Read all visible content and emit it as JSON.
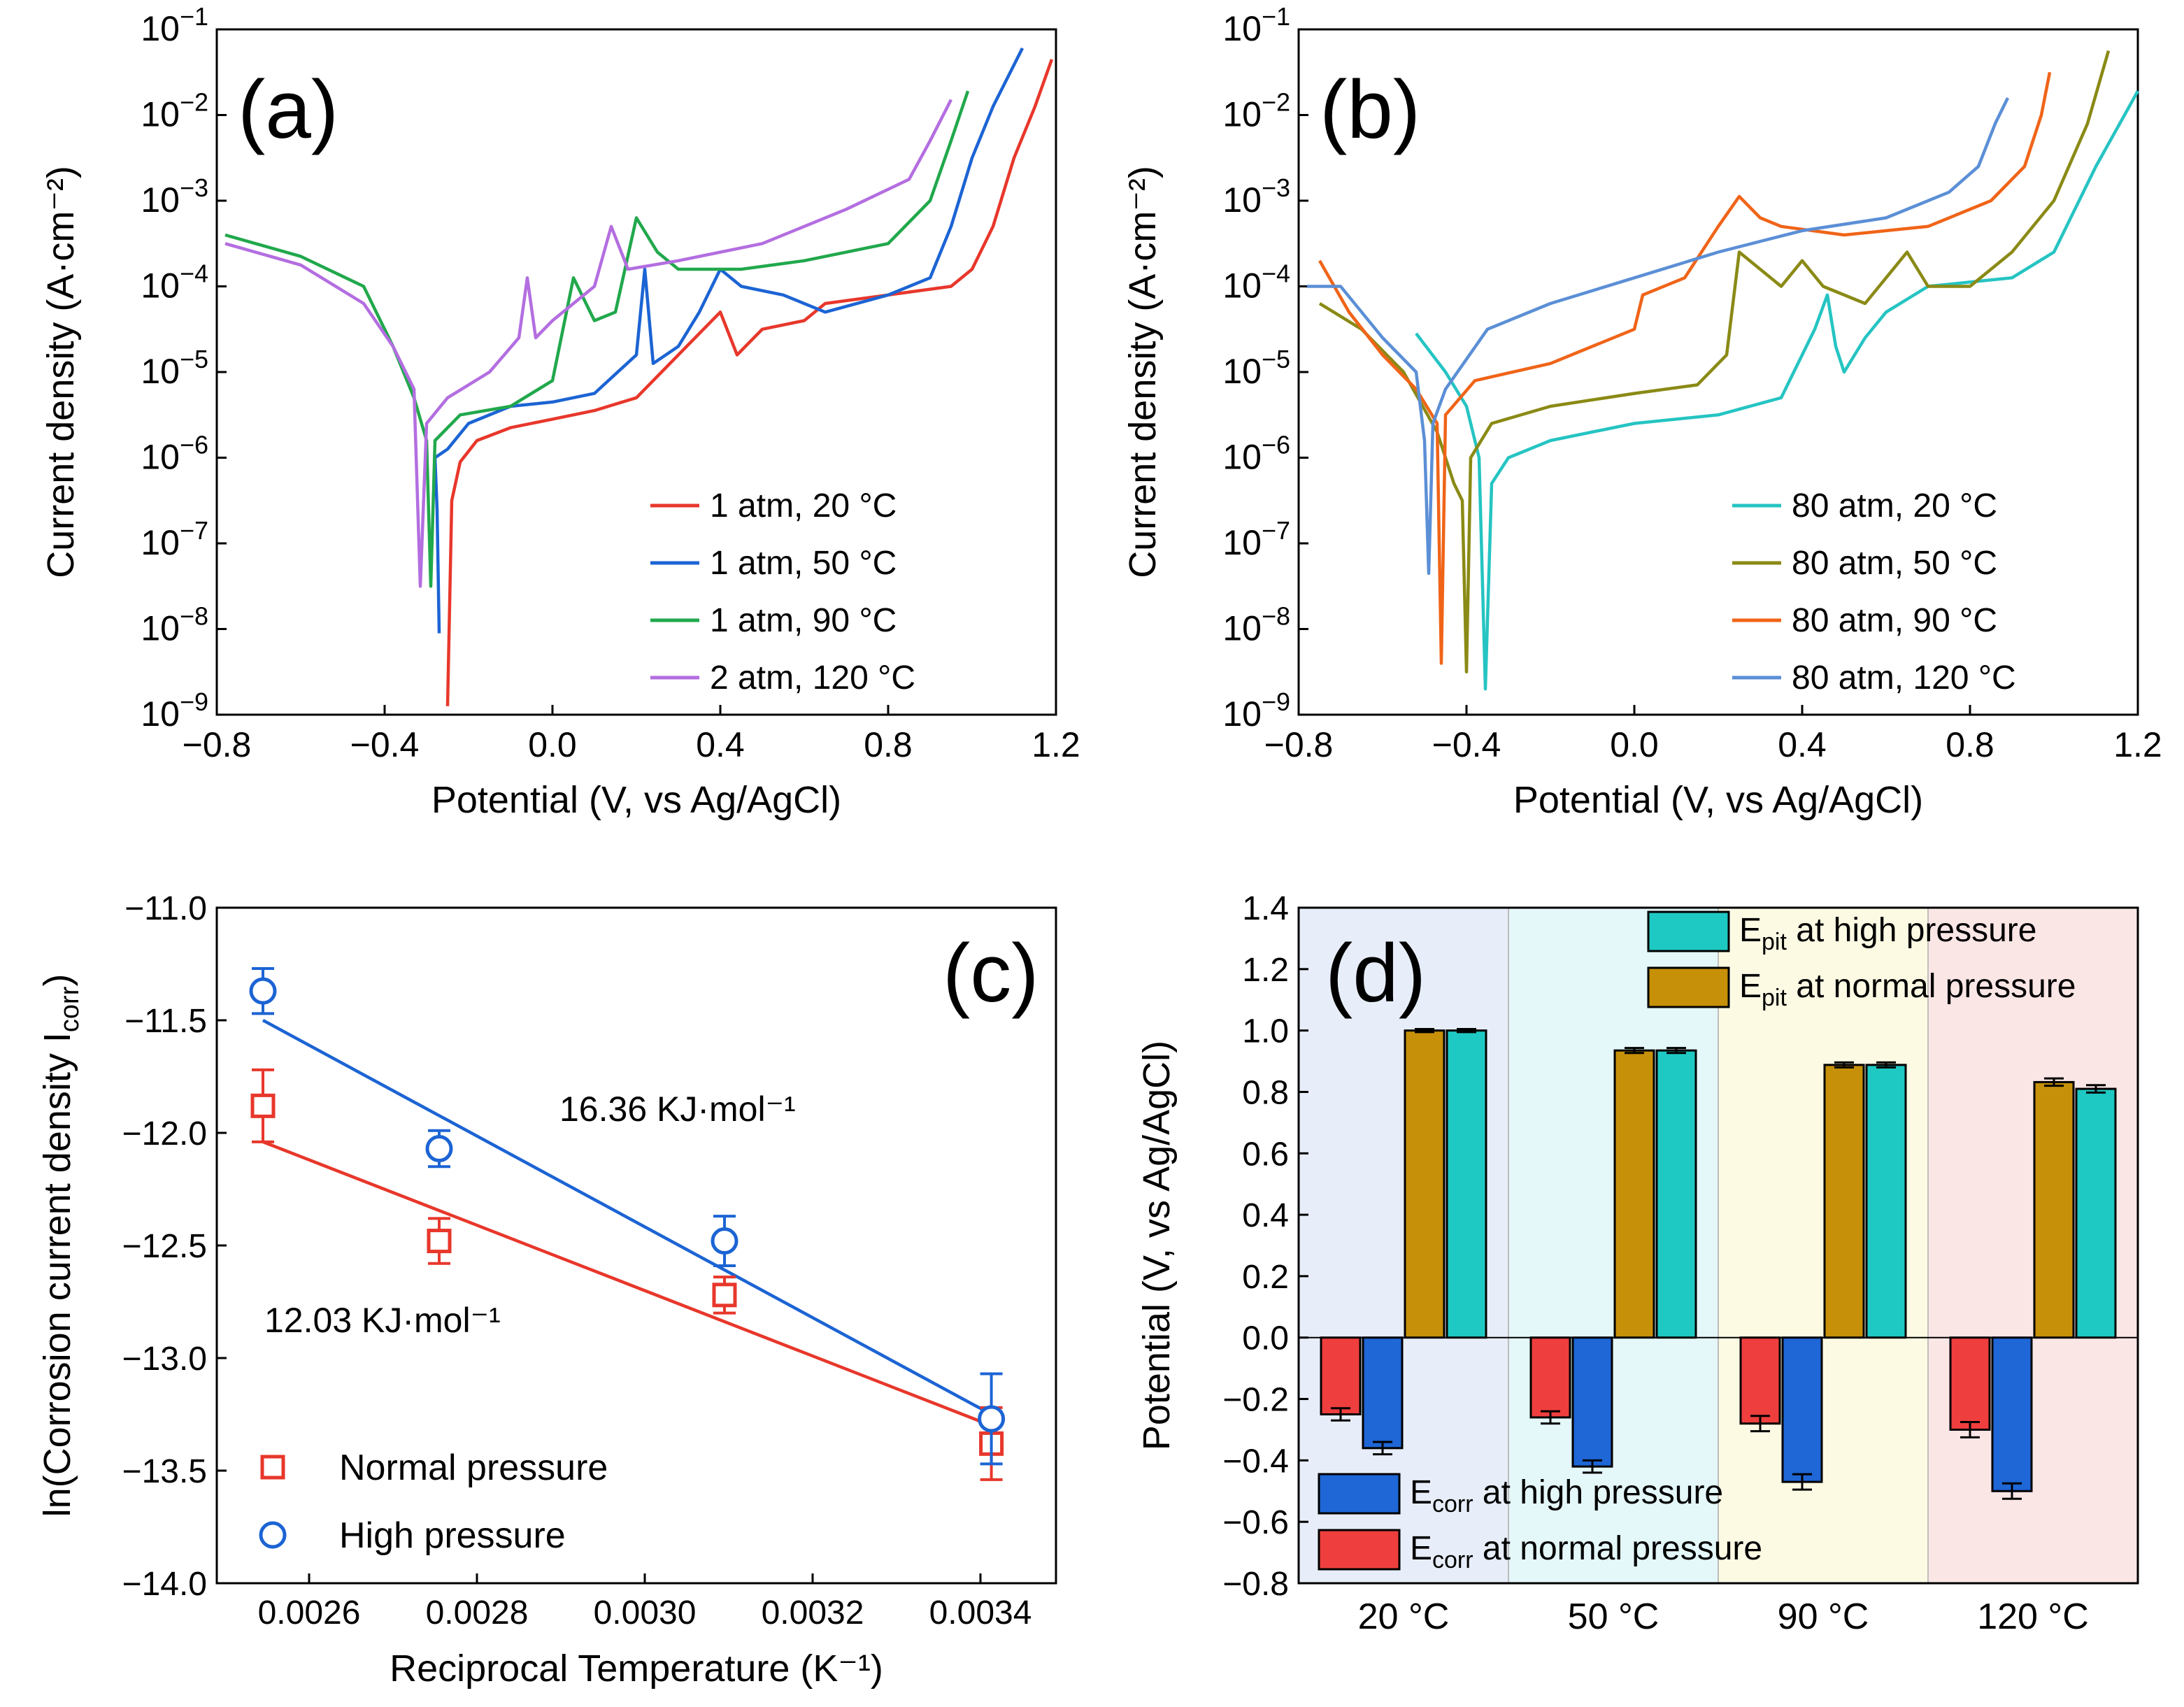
{
  "chart_data": [
    {
      "panel": "(a)",
      "type": "line",
      "xlabel": "Potential (V, vs Ag/AgCl)",
      "ylabel": "Current density (A·cm⁻²)",
      "xlim": [
        -0.8,
        1.2
      ],
      "ylim_log10": [
        -9,
        -1
      ],
      "xticks": [
        "−0.8",
        "−0.4",
        "0.0",
        "0.4",
        "0.8",
        "1.2"
      ],
      "legend_position": "bottom-right",
      "series": [
        {
          "name": "1 atm, 20 °C",
          "color": "#e8372b",
          "points": [
            [
              -0.25,
              -8.9
            ],
            [
              -0.24,
              -6.5
            ],
            [
              -0.22,
              -6.05
            ],
            [
              -0.18,
              -5.8
            ],
            [
              -0.1,
              -5.65
            ],
            [
              0.0,
              -5.55
            ],
            [
              0.1,
              -5.45
            ],
            [
              0.2,
              -5.3
            ],
            [
              0.3,
              -4.8
            ],
            [
              0.4,
              -4.3
            ],
            [
              0.44,
              -4.8
            ],
            [
              0.5,
              -4.5
            ],
            [
              0.6,
              -4.4
            ],
            [
              0.65,
              -4.2
            ],
            [
              0.8,
              -4.1
            ],
            [
              0.95,
              -4.0
            ],
            [
              1.0,
              -3.8
            ],
            [
              1.05,
              -3.3
            ],
            [
              1.1,
              -2.5
            ],
            [
              1.15,
              -1.9
            ],
            [
              1.19,
              -1.35
            ]
          ]
        },
        {
          "name": "1 atm, 50 °C",
          "color": "#1c64d4",
          "points": [
            [
              -0.27,
              -8.05
            ],
            [
              -0.275,
              -6.6
            ],
            [
              -0.28,
              -6.0
            ],
            [
              -0.25,
              -5.9
            ],
            [
              -0.2,
              -5.6
            ],
            [
              -0.1,
              -5.4
            ],
            [
              0.0,
              -5.35
            ],
            [
              0.1,
              -5.25
            ],
            [
              0.2,
              -4.8
            ],
            [
              0.22,
              -3.8
            ],
            [
              0.24,
              -4.9
            ],
            [
              0.3,
              -4.7
            ],
            [
              0.35,
              -4.3
            ],
            [
              0.4,
              -3.8
            ],
            [
              0.45,
              -4.0
            ],
            [
              0.55,
              -4.1
            ],
            [
              0.65,
              -4.3
            ],
            [
              0.8,
              -4.1
            ],
            [
              0.9,
              -3.9
            ],
            [
              0.95,
              -3.3
            ],
            [
              1.0,
              -2.5
            ],
            [
              1.05,
              -1.9
            ],
            [
              1.12,
              -1.22
            ]
          ]
        },
        {
          "name": "1 atm, 90 °C",
          "color": "#21a84c",
          "points": [
            [
              -0.78,
              -3.4
            ],
            [
              -0.6,
              -3.65
            ],
            [
              -0.45,
              -4.0
            ],
            [
              -0.38,
              -4.7
            ],
            [
              -0.33,
              -5.3
            ],
            [
              -0.3,
              -5.8
            ],
            [
              -0.29,
              -7.5
            ],
            [
              -0.28,
              -5.8
            ],
            [
              -0.22,
              -5.5
            ],
            [
              -0.1,
              -5.4
            ],
            [
              0.0,
              -5.1
            ],
            [
              0.05,
              -3.9
            ],
            [
              0.1,
              -4.4
            ],
            [
              0.15,
              -4.3
            ],
            [
              0.2,
              -3.2
            ],
            [
              0.25,
              -3.6
            ],
            [
              0.3,
              -3.8
            ],
            [
              0.45,
              -3.8
            ],
            [
              0.6,
              -3.7
            ],
            [
              0.8,
              -3.5
            ],
            [
              0.9,
              -3.0
            ],
            [
              0.95,
              -2.3
            ],
            [
              0.99,
              -1.72
            ]
          ]
        },
        {
          "name": "2 atm, 120 °C",
          "color": "#b36ee0",
          "points": [
            [
              -0.78,
              -3.5
            ],
            [
              -0.6,
              -3.75
            ],
            [
              -0.45,
              -4.2
            ],
            [
              -0.38,
              -4.7
            ],
            [
              -0.33,
              -5.2
            ],
            [
              -0.315,
              -7.5
            ],
            [
              -0.3,
              -5.6
            ],
            [
              -0.25,
              -5.3
            ],
            [
              -0.15,
              -5.0
            ],
            [
              -0.08,
              -4.6
            ],
            [
              -0.06,
              -3.9
            ],
            [
              -0.04,
              -4.6
            ],
            [
              0.0,
              -4.4
            ],
            [
              0.1,
              -4.0
            ],
            [
              0.14,
              -3.3
            ],
            [
              0.18,
              -3.8
            ],
            [
              0.3,
              -3.7
            ],
            [
              0.5,
              -3.5
            ],
            [
              0.7,
              -3.1
            ],
            [
              0.85,
              -2.75
            ],
            [
              0.9,
              -2.3
            ],
            [
              0.95,
              -1.82
            ]
          ]
        }
      ]
    },
    {
      "panel": "(b)",
      "type": "line",
      "xlabel": "Potential (V, vs Ag/AgCl)",
      "ylabel": "Current density (A·cm⁻²)",
      "xlim": [
        -0.8,
        1.2
      ],
      "ylim_log10": [
        -9,
        -1
      ],
      "xticks": [
        "−0.8",
        "−0.4",
        "0.0",
        "0.4",
        "0.8",
        "1.2"
      ],
      "legend_position": "bottom-right",
      "series": [
        {
          "name": "80 atm, 20 °C",
          "color": "#25c4c2",
          "points": [
            [
              -0.52,
              -4.55
            ],
            [
              -0.45,
              -5.0
            ],
            [
              -0.4,
              -5.4
            ],
            [
              -0.37,
              -6.0
            ],
            [
              -0.355,
              -8.7
            ],
            [
              -0.34,
              -6.3
            ],
            [
              -0.3,
              -6.0
            ],
            [
              -0.2,
              -5.8
            ],
            [
              0.0,
              -5.6
            ],
            [
              0.2,
              -5.5
            ],
            [
              0.35,
              -5.3
            ],
            [
              0.43,
              -4.5
            ],
            [
              0.46,
              -4.1
            ],
            [
              0.48,
              -4.7
            ],
            [
              0.5,
              -5.0
            ],
            [
              0.55,
              -4.6
            ],
            [
              0.6,
              -4.3
            ],
            [
              0.7,
              -4.0
            ],
            [
              0.8,
              -3.95
            ],
            [
              0.9,
              -3.9
            ],
            [
              1.0,
              -3.6
            ],
            [
              1.1,
              -2.6
            ],
            [
              1.2,
              -1.72
            ]
          ]
        },
        {
          "name": "80 atm, 50 °C",
          "color": "#8a8a16",
          "points": [
            [
              -0.75,
              -4.2
            ],
            [
              -0.65,
              -4.5
            ],
            [
              -0.55,
              -5.0
            ],
            [
              -0.47,
              -5.7
            ],
            [
              -0.43,
              -6.3
            ],
            [
              -0.41,
              -6.5
            ],
            [
              -0.4,
              -8.5
            ],
            [
              -0.39,
              -6.0
            ],
            [
              -0.34,
              -5.6
            ],
            [
              -0.2,
              -5.4
            ],
            [
              0.0,
              -5.25
            ],
            [
              0.15,
              -5.15
            ],
            [
              0.22,
              -4.8
            ],
            [
              0.25,
              -3.6
            ],
            [
              0.3,
              -3.8
            ],
            [
              0.35,
              -4.0
            ],
            [
              0.4,
              -3.7
            ],
            [
              0.45,
              -4.0
            ],
            [
              0.55,
              -4.2
            ],
            [
              0.65,
              -3.6
            ],
            [
              0.7,
              -4.0
            ],
            [
              0.8,
              -4.0
            ],
            [
              0.9,
              -3.6
            ],
            [
              1.0,
              -3.0
            ],
            [
              1.08,
              -2.1
            ],
            [
              1.13,
              -1.25
            ]
          ]
        },
        {
          "name": "80 atm, 90 °C",
          "color": "#f06418",
          "points": [
            [
              -0.75,
              -3.7
            ],
            [
              -0.68,
              -4.3
            ],
            [
              -0.6,
              -4.8
            ],
            [
              -0.52,
              -5.2
            ],
            [
              -0.47,
              -5.6
            ],
            [
              -0.46,
              -8.4
            ],
            [
              -0.45,
              -5.5
            ],
            [
              -0.38,
              -5.1
            ],
            [
              -0.2,
              -4.9
            ],
            [
              0.0,
              -4.5
            ],
            [
              0.02,
              -4.1
            ],
            [
              0.12,
              -3.9
            ],
            [
              0.2,
              -3.3
            ],
            [
              0.25,
              -2.95
            ],
            [
              0.3,
              -3.2
            ],
            [
              0.35,
              -3.3
            ],
            [
              0.5,
              -3.4
            ],
            [
              0.6,
              -3.35
            ],
            [
              0.7,
              -3.3
            ],
            [
              0.85,
              -3.0
            ],
            [
              0.93,
              -2.6
            ],
            [
              0.97,
              -2.0
            ],
            [
              0.99,
              -1.5
            ]
          ]
        },
        {
          "name": "80 atm, 120 °C",
          "color": "#5b8fd6",
          "points": [
            [
              -0.78,
              -4.0
            ],
            [
              -0.7,
              -4.0
            ],
            [
              -0.6,
              -4.6
            ],
            [
              -0.52,
              -5.0
            ],
            [
              -0.5,
              -5.8
            ],
            [
              -0.49,
              -7.35
            ],
            [
              -0.48,
              -5.6
            ],
            [
              -0.45,
              -5.2
            ],
            [
              -0.35,
              -4.5
            ],
            [
              -0.2,
              -4.2
            ],
            [
              0.0,
              -3.9
            ],
            [
              0.2,
              -3.6
            ],
            [
              0.4,
              -3.35
            ],
            [
              0.6,
              -3.2
            ],
            [
              0.75,
              -2.9
            ],
            [
              0.82,
              -2.6
            ],
            [
              0.86,
              -2.1
            ],
            [
              0.89,
              -1.8
            ]
          ]
        }
      ]
    },
    {
      "panel": "(c)",
      "type": "scatter",
      "xlabel": "Reciprocal Temperature (K⁻¹)",
      "ylabel": "ln(Corrosion current density Icorr)",
      "xlim": [
        0.00249,
        0.00349
      ],
      "ylim": [
        -14.0,
        -11.0
      ],
      "xticks": [
        "0.0026",
        "0.0028",
        "0.0030",
        "0.0032",
        "0.0034"
      ],
      "yticks": [
        "−14.0",
        "−13.5",
        "−13.0",
        "−12.5",
        "−12.0",
        "−11.5",
        "−11.0"
      ],
      "legend_position": "bottom-left",
      "series": [
        {
          "name": "Normal pressure",
          "color": "#e8372b",
          "marker": "square",
          "x": [
            0.002545,
            0.002755,
            0.003095,
            0.003413
          ],
          "y": [
            -11.88,
            -12.48,
            -12.72,
            -13.38
          ],
          "err": [
            0.16,
            0.1,
            0.08,
            0.16
          ],
          "fit": {
            "x": [
              0.002545,
              0.003413
            ],
            "y": [
              -12.04,
              -13.3
            ]
          },
          "annotation": "12.03 KJ·mol⁻¹"
        },
        {
          "name": "High pressure",
          "color": "#1c64d4",
          "marker": "circle",
          "x": [
            0.002545,
            0.002755,
            0.003095,
            0.003413
          ],
          "y": [
            -11.37,
            -12.07,
            -12.48,
            -13.27
          ],
          "err": [
            0.1,
            0.08,
            0.11,
            0.2
          ],
          "fit": {
            "x": [
              0.002545,
              0.003413
            ],
            "y": [
              -11.5,
              -13.25
            ]
          },
          "annotation": "16.36 KJ·mol⁻¹"
        }
      ]
    },
    {
      "panel": "(d)",
      "type": "bar",
      "ylabel": "Potential (V, vs Ag/AgCl)",
      "ylim": [
        -0.8,
        1.4
      ],
      "yticks": [
        "−0.8",
        "−0.6",
        "−0.4",
        "−0.2",
        "0.0",
        "0.2",
        "0.4",
        "0.6",
        "0.8",
        "1.0",
        "1.2",
        "1.4"
      ],
      "categories": [
        "20 °C",
        "50 °C",
        "90 °C",
        "120 °C"
      ],
      "region_colors": [
        "#e8eef9",
        "#e4f7f9",
        "#fdfae4",
        "#fbe6e6"
      ],
      "series": [
        {
          "name": "Ecorr at normal pressure",
          "color": "#ef3e3e",
          "values": [
            -0.25,
            -0.26,
            -0.28,
            -0.3
          ],
          "err": [
            0.02,
            0.02,
            0.025,
            0.025
          ]
        },
        {
          "name": "Ecorr at high pressure",
          "color": "#1f66d6",
          "values": [
            -0.36,
            -0.42,
            -0.47,
            -0.5
          ],
          "err": [
            0.02,
            0.02,
            0.025,
            0.025
          ]
        },
        {
          "name": "Epit at normal pressure",
          "color": "#c69009",
          "values": [
            1.0,
            0.935,
            0.888,
            0.832
          ],
          "err": [
            0.005,
            0.008,
            0.008,
            0.012
          ]
        },
        {
          "name": "Epit at high pressure",
          "color": "#1fc9c3",
          "values": [
            1.0,
            0.935,
            0.888,
            0.81
          ],
          "err": [
            0.005,
            0.008,
            0.008,
            0.012
          ]
        }
      ],
      "legend_top": [
        {
          "main": "E",
          "sub": "pit",
          "rest": " at high pressure",
          "color": "#1fc9c3"
        },
        {
          "main": "E",
          "sub": "pit",
          "rest": " at normal pressure",
          "color": "#c69009"
        }
      ],
      "legend_bottom": [
        {
          "main": "E",
          "sub": "corr",
          "rest": " at high pressure",
          "color": "#1f66d6"
        },
        {
          "main": "E",
          "sub": "corr",
          "rest": " at normal pressure",
          "color": "#ef3e3e"
        }
      ]
    }
  ]
}
